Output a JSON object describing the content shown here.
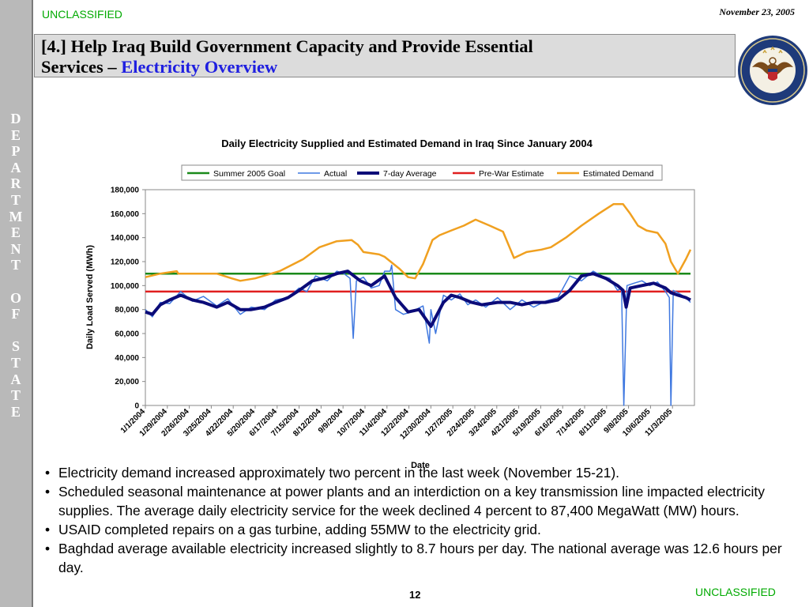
{
  "header": {
    "classification": "UNCLASSIFIED",
    "date": "November 23, 2005",
    "title_main": "[4.] Help Iraq Build Government Capacity and Provide Essential",
    "title_line2": "Services – ",
    "title_highlight": "Electricity Overview"
  },
  "sidebar": {
    "letters": [
      "D",
      "E",
      "P",
      "A",
      "R",
      "T",
      "M",
      "E",
      "N",
      "T",
      "",
      "O",
      "F",
      "",
      "S",
      "T",
      "A",
      "T",
      "E"
    ]
  },
  "footer": {
    "page_number": "12",
    "classification": "UNCLASSIFIED"
  },
  "bullets": [
    "Electricity demand increased approximately two percent in the last week (November 15-21).",
    "Scheduled seasonal maintenance at power plants and an interdiction on a key transmission line impacted electricity supplies.  The average daily electricity service for the week declined 4 percent to 87,400 MegaWatt (MW) hours.",
    "USAID completed repairs on a gas turbine, adding 55MW to the electricity grid.",
    "Baghdad average available electricity increased slightly to 8.7 hours per day.  The national average was 12.6 hours per day."
  ],
  "chart_data": {
    "type": "line",
    "title": "Daily Electricity Supplied and Estimated Demand in Iraq Since January 2004",
    "xlabel": "Date",
    "ylabel": "Daily Load Served (MWh)",
    "ylim": [
      0,
      180000
    ],
    "xlim": [
      "1/1/2004",
      "12/1/2005"
    ],
    "yticks": [
      "0",
      "20,000",
      "40,000",
      "60,000",
      "80,000",
      "100,000",
      "120,000",
      "140,000",
      "160,000",
      "180,000"
    ],
    "xticks": [
      "1/1/2004",
      "1/29/2004",
      "2/26/2004",
      "3/25/2004",
      "4/22/2004",
      "5/20/2004",
      "6/17/2004",
      "7/15/2004",
      "8/12/2004",
      "9/9/2004",
      "10/7/2004",
      "11/4/2004",
      "12/2/2004",
      "12/30/2004",
      "1/27/2005",
      "2/24/2005",
      "3/24/2005",
      "4/21/2005",
      "5/19/2005",
      "6/16/2005",
      "7/14/2005",
      "8/11/2005",
      "9/8/2005",
      "10/6/2005",
      "11/3/2005"
    ],
    "grid": false,
    "legend_position": "top",
    "series": [
      {
        "name": "Summer 2005 Goal",
        "color": "#1a8a1a",
        "width": 2.5,
        "x": [
          "1/1/2004",
          "11/26/2005"
        ],
        "y": [
          110000,
          110000
        ]
      },
      {
        "name": "Actual",
        "color": "#3f78e0",
        "width": 1.5,
        "x": [
          "1/1/2004",
          "1/10/2004",
          "1/20/2004",
          "2/1/2004",
          "2/15/2004",
          "3/1/2004",
          "3/15/2004",
          "4/1/2004",
          "4/15/2004",
          "5/1/2004",
          "5/15/2004",
          "6/1/2004",
          "6/15/2004",
          "7/1/2004",
          "7/15/2004",
          "7/25/2004",
          "8/5/2004",
          "8/20/2004",
          "9/1/2004",
          "9/10/2004",
          "9/18/2004",
          "9/22/2004",
          "9/26/2004",
          "10/5/2004",
          "10/15/2004",
          "10/25/2004",
          "11/1/2004",
          "11/8/2004",
          "11/10/2004",
          "11/15/2004",
          "11/25/2004",
          "12/5/2004",
          "12/20/2004",
          "12/28/2004",
          "12/30/2004",
          "1/5/2005",
          "1/15/2005",
          "1/25/2005",
          "2/5/2005",
          "2/15/2005",
          "2/25/2005",
          "3/10/2005",
          "3/25/2005",
          "4/10/2005",
          "4/25/2005",
          "5/10/2005",
          "5/25/2005",
          "6/10/2005",
          "6/25/2005",
          "7/10/2005",
          "7/25/2005",
          "8/5/2005",
          "8/15/2005",
          "8/25/2005",
          "8/30/2005",
          "9/2/2005",
          "9/6/2005",
          "9/15/2005",
          "9/25/2005",
          "10/5/2005",
          "10/15/2005",
          "10/25/2005",
          "10/30/2005",
          "11/1/2005",
          "11/4/2005",
          "11/10/2005",
          "11/20/2005",
          "11/26/2005"
        ],
        "y": [
          80000,
          74000,
          86000,
          85000,
          95000,
          87000,
          91000,
          83000,
          89000,
          76000,
          82000,
          80000,
          88000,
          90000,
          98000,
          95000,
          108000,
          104000,
          112000,
          110000,
          106000,
          56000,
          104000,
          107000,
          98000,
          100000,
          112000,
          112000,
          117000,
          80000,
          76000,
          78000,
          83000,
          52000,
          80000,
          60000,
          92000,
          88000,
          93000,
          84000,
          88000,
          82000,
          90000,
          80000,
          88000,
          82000,
          87000,
          90000,
          108000,
          104000,
          112000,
          108000,
          106000,
          96000,
          98000,
          0,
          100000,
          102000,
          104000,
          100000,
          103000,
          95000,
          90000,
          0,
          96000,
          94000,
          90000,
          86000
        ]
      },
      {
        "name": "7-day Average",
        "color": "#0b0b78",
        "width": 4,
        "x": [
          "1/1/2004",
          "1/10/2004",
          "1/20/2004",
          "2/1/2004",
          "2/15/2004",
          "3/1/2004",
          "3/15/2004",
          "4/1/2004",
          "4/15/2004",
          "5/1/2004",
          "5/15/2004",
          "6/1/2004",
          "6/15/2004",
          "7/1/2004",
          "7/15/2004",
          "8/1/2004",
          "8/15/2004",
          "9/1/2004",
          "9/15/2004",
          "10/1/2004",
          "10/15/2004",
          "11/1/2004",
          "11/15/2004",
          "12/1/2004",
          "12/15/2004",
          "12/30/2004",
          "1/15/2005",
          "1/25/2005",
          "2/5/2005",
          "2/20/2005",
          "3/5/2005",
          "3/25/2005",
          "4/10/2005",
          "4/25/2005",
          "5/10/2005",
          "5/25/2005",
          "6/10/2005",
          "6/25/2005",
          "7/10/2005",
          "7/25/2005",
          "8/10/2005",
          "8/25/2005",
          "9/1/2005",
          "9/5/2005",
          "9/10/2005",
          "9/25/2005",
          "10/10/2005",
          "10/25/2005",
          "11/1/2005",
          "11/10/2005",
          "11/20/2005",
          "11/26/2005"
        ],
        "y": [
          78000,
          76000,
          84000,
          88000,
          92000,
          88000,
          86000,
          82000,
          86000,
          80000,
          80000,
          82000,
          86000,
          90000,
          96000,
          104000,
          106000,
          110000,
          112000,
          104000,
          100000,
          108000,
          90000,
          78000,
          80000,
          66000,
          86000,
          92000,
          90000,
          86000,
          84000,
          86000,
          86000,
          84000,
          86000,
          86000,
          88000,
          96000,
          108000,
          110000,
          106000,
          100000,
          96000,
          82000,
          98000,
          100000,
          102000,
          98000,
          94000,
          92000,
          90000,
          88000
        ]
      },
      {
        "name": "Pre-War Estimate",
        "color": "#e01f1f",
        "width": 2.5,
        "x": [
          "1/1/2004",
          "11/26/2005"
        ],
        "y": [
          95000,
          95000
        ]
      },
      {
        "name": "Estimated Demand",
        "color": "#f0a020",
        "width": 2.5,
        "x": [
          "1/1/2004",
          "1/20/2004",
          "2/10/2004",
          "2/12/2004",
          "3/1/2004",
          "4/1/2004",
          "4/20/2004",
          "5/1/2004",
          "5/20/2004",
          "6/20/2004",
          "7/20/2004",
          "8/10/2004",
          "9/1/2004",
          "9/20/2004",
          "9/28/2004",
          "10/5/2004",
          "10/25/2004",
          "11/1/2004",
          "11/20/2004",
          "12/1/2004",
          "12/10/2004",
          "12/20/2004",
          "1/1/2005",
          "1/10/2005",
          "1/25/2005",
          "2/10/2005",
          "2/25/2005",
          "3/15/2005",
          "4/1/2005",
          "4/15/2005",
          "5/1/2005",
          "5/20/2005",
          "6/1/2005",
          "6/20/2005",
          "7/10/2005",
          "8/1/2005",
          "8/20/2005",
          "9/1/2005",
          "9/10/2005",
          "9/20/2005",
          "10/1/2005",
          "10/15/2005",
          "10/25/2005",
          "11/1/2005",
          "11/10/2005",
          "11/20/2005",
          "11/26/2005"
        ],
        "y": [
          107000,
          110000,
          112000,
          110000,
          110000,
          110000,
          106000,
          104000,
          106000,
          112000,
          122000,
          132000,
          137000,
          138000,
          134000,
          128000,
          126000,
          124000,
          114000,
          107000,
          106000,
          118000,
          138000,
          142000,
          146000,
          150000,
          155000,
          150000,
          145000,
          123000,
          128000,
          130000,
          132000,
          140000,
          150000,
          160000,
          168000,
          168000,
          160000,
          150000,
          146000,
          144000,
          135000,
          120000,
          110000,
          122000,
          130000
        ]
      }
    ]
  }
}
